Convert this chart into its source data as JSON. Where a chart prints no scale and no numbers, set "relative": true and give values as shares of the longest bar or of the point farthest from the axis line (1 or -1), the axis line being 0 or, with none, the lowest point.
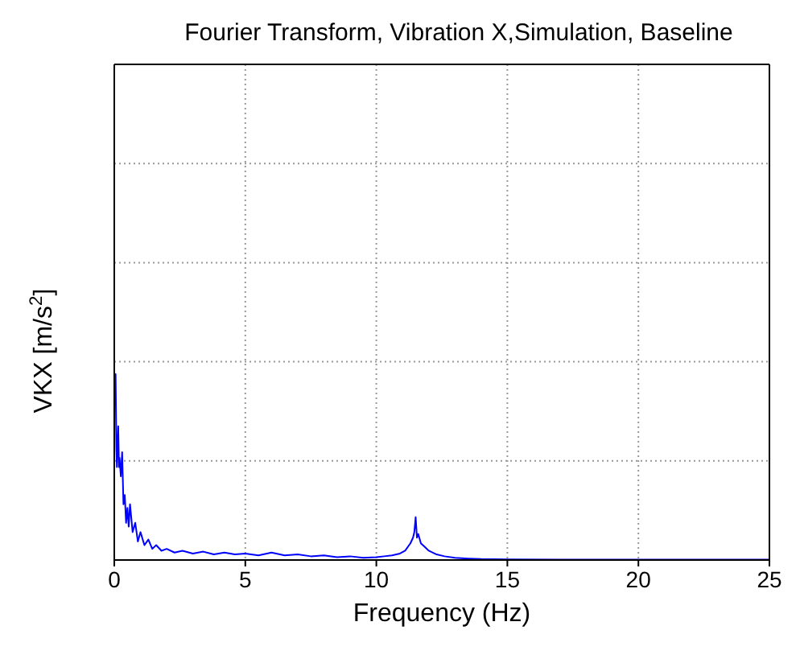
{
  "chart_data": {
    "type": "line",
    "title": "Fourier Transform, Vibration X,Simulation, Baseline",
    "xlabel": "Frequency (Hz)",
    "ylabel": "VKX [m/s$^{2}$]",
    "relative": true,
    "xlim": [
      0,
      25
    ],
    "xticks": [
      0,
      5,
      10,
      15,
      20,
      25
    ],
    "grid": true,
    "legend": false,
    "marker": "none",
    "line_style": "solid",
    "series": [
      {
        "color": "#0000ff",
        "x": [
          0.03,
          0.05,
          0.08,
          0.1,
          0.13,
          0.15,
          0.18,
          0.2,
          0.25,
          0.3,
          0.35,
          0.4,
          0.45,
          0.5,
          0.55,
          0.6,
          0.7,
          0.8,
          0.9,
          1.0,
          1.15,
          1.3,
          1.45,
          1.6,
          1.8,
          2,
          2.3,
          2.6,
          3,
          3.4,
          3.8,
          4.2,
          4.6,
          5,
          5.5,
          6,
          6.5,
          7,
          7.5,
          8,
          8.5,
          9,
          9.5,
          10,
          10.3,
          10.6,
          10.9,
          11.1,
          11.3,
          11.4,
          11.45,
          11.5,
          11.55,
          11.6,
          11.7,
          11.85,
          12,
          12.3,
          12.6,
          13,
          13.5,
          14,
          15,
          17,
          20,
          25
        ],
        "values": [
          0.85,
          1,
          0.6,
          0.5,
          0.65,
          0.72,
          0.5,
          0.55,
          0.45,
          0.58,
          0.3,
          0.35,
          0.2,
          0.28,
          0.18,
          0.3,
          0.15,
          0.2,
          0.1,
          0.15,
          0.08,
          0.11,
          0.06,
          0.08,
          0.05,
          0.06,
          0.04,
          0.05,
          0.035,
          0.045,
          0.03,
          0.04,
          0.03,
          0.035,
          0.025,
          0.04,
          0.025,
          0.03,
          0.02,
          0.025,
          0.015,
          0.02,
          0.012,
          0.015,
          0.02,
          0.025,
          0.035,
          0.05,
          0.09,
          0.12,
          0.15,
          0.23,
          0.12,
          0.14,
          0.09,
          0.07,
          0.05,
          0.03,
          0.02,
          0.012,
          0.008,
          0.005,
          0.003,
          0.002,
          0.002,
          0.002
        ]
      }
    ]
  }
}
